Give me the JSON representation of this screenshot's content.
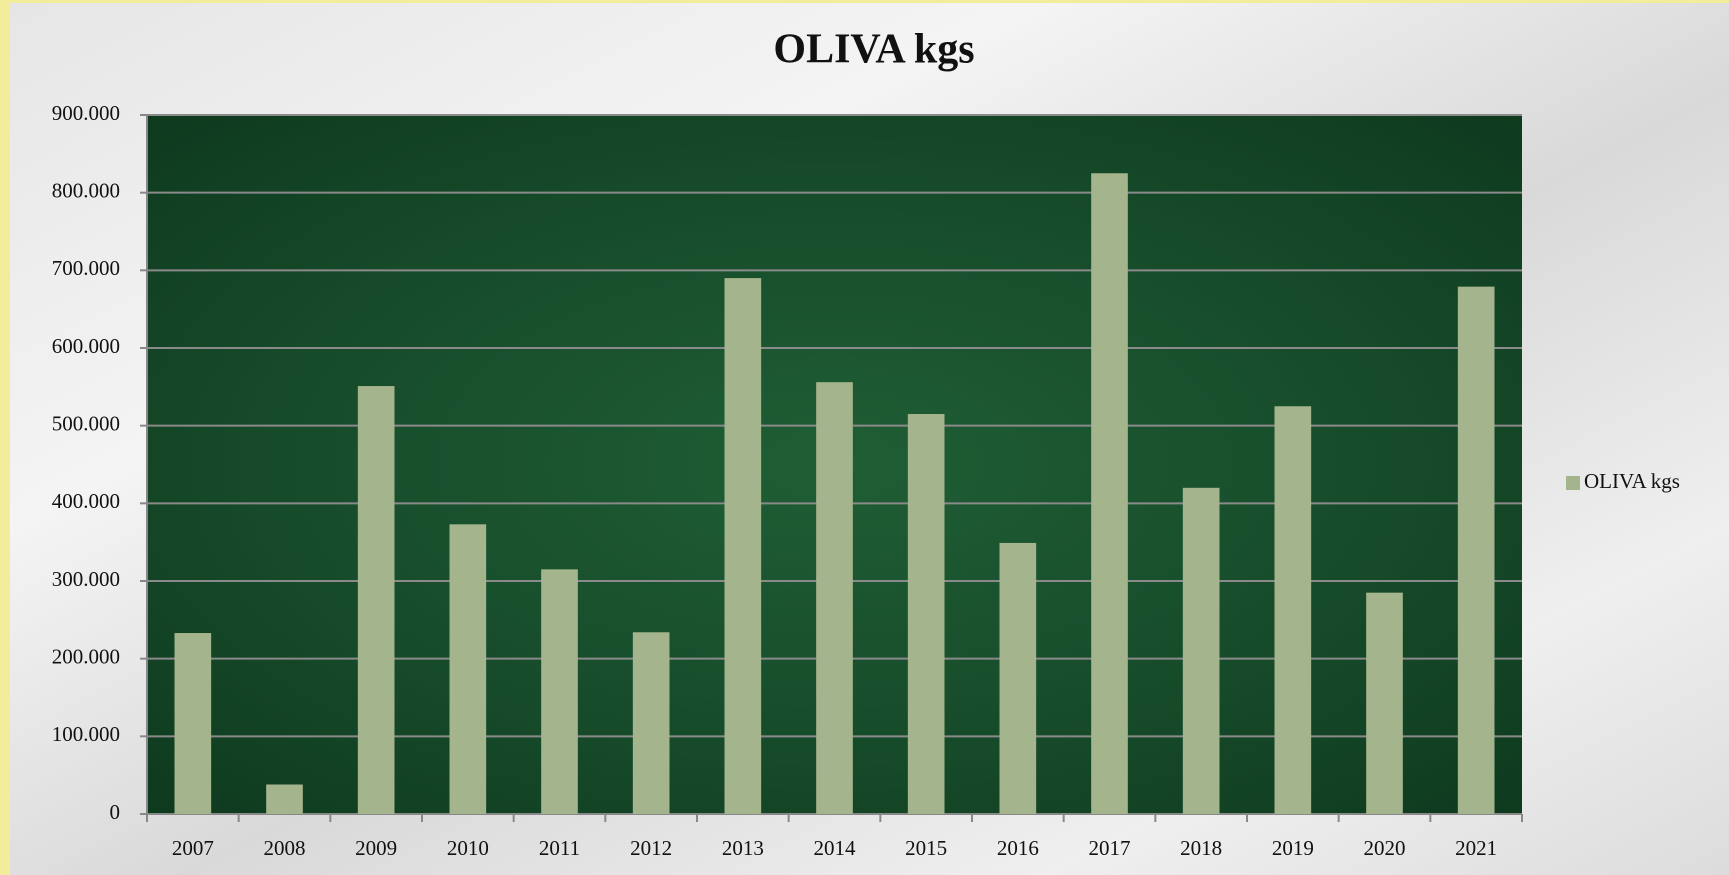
{
  "chart_data": {
    "type": "bar",
    "title": "OLIVA kgs",
    "categories": [
      "2007",
      "2008",
      "2009",
      "2010",
      "2011",
      "2012",
      "2013",
      "2014",
      "2015",
      "2016",
      "2017",
      "2018",
      "2019",
      "2020",
      "2021"
    ],
    "series": [
      {
        "name": "OLIVA kgs",
        "color": "#a4b48c",
        "values": [
          233000,
          38000,
          551000,
          373000,
          315000,
          234000,
          690000,
          556000,
          515000,
          349000,
          825000,
          420000,
          525000,
          285000,
          679000
        ]
      }
    ],
    "ylim": [
      0,
      900000
    ],
    "yticks": [
      0,
      {
        "value": 100000,
        "label": "100.000"
      },
      {
        "value": 200000,
        "label": "200.000"
      },
      {
        "value": 300000,
        "label": "300.000"
      },
      {
        "value": 400000,
        "label": "400.000"
      },
      {
        "value": 500000,
        "label": "500.000"
      },
      {
        "value": 600000,
        "label": "600.000"
      },
      {
        "value": 700000,
        "label": "700.000"
      },
      {
        "value": 800000,
        "label": "800.000"
      },
      {
        "value": 900000,
        "label": "900.000"
      }
    ],
    "grid": true,
    "legend": "right"
  }
}
